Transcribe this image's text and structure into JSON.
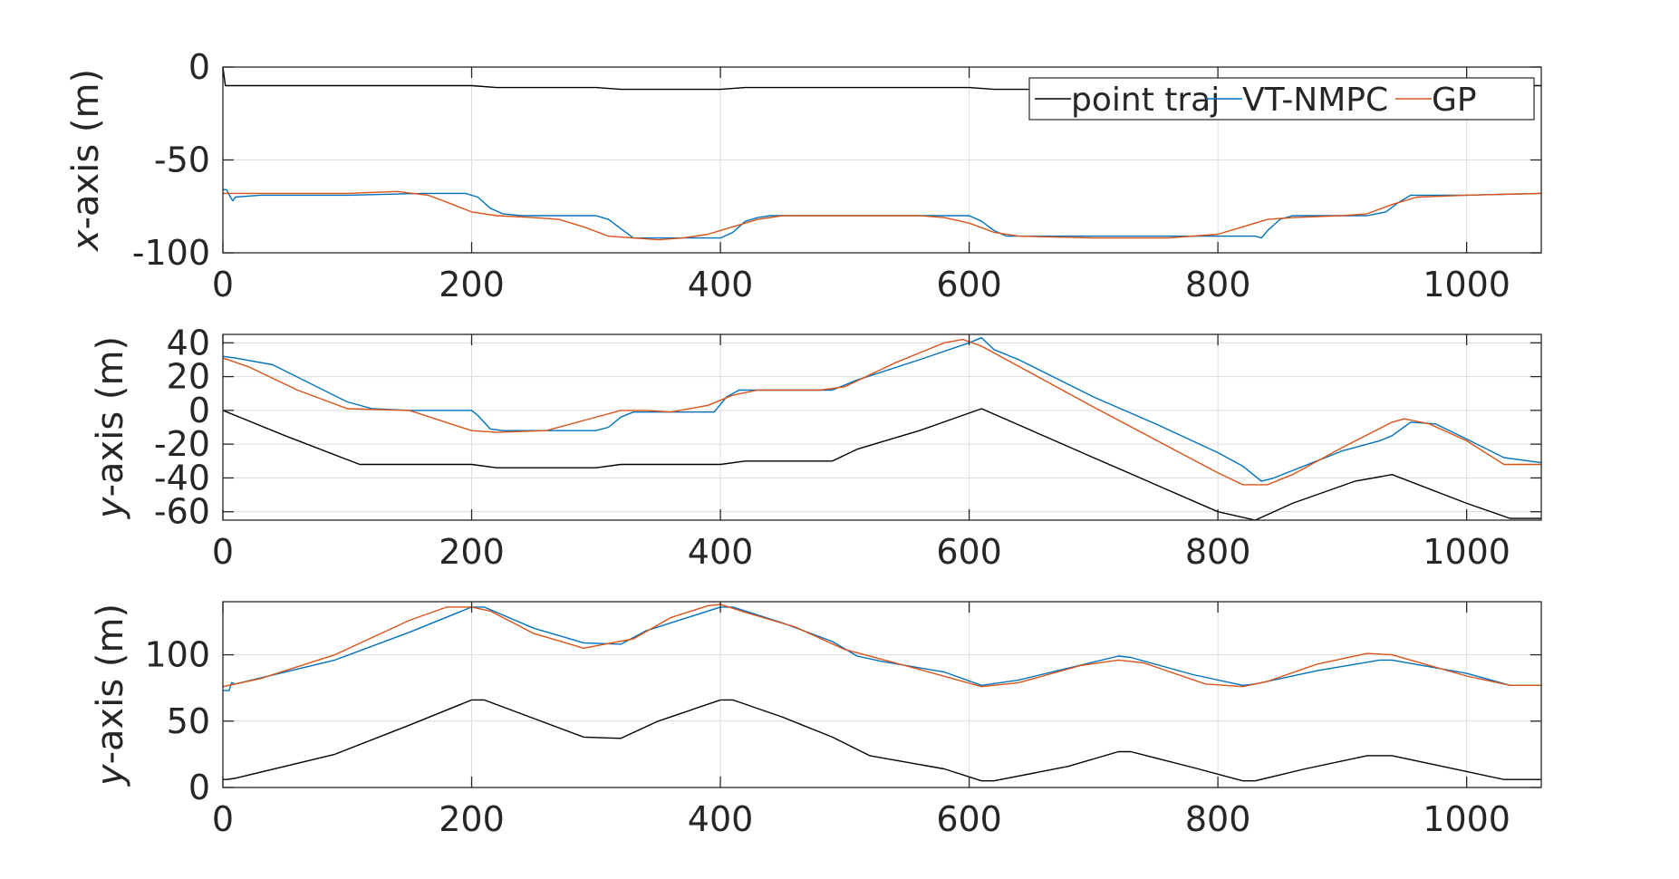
{
  "chart_data": [
    {
      "type": "line",
      "title": "",
      "ylabel_var": "x",
      "ylabel_rest": "-axis (m)",
      "xlabel": "",
      "xlim": [
        0,
        1060
      ],
      "ylim": [
        -100,
        0
      ],
      "xticks": [
        0,
        200,
        400,
        600,
        800,
        1000
      ],
      "yticks": [
        0,
        -50,
        -100
      ],
      "grid": true,
      "legend": "top-right",
      "series": [
        {
          "name": "point traj",
          "color": "#000000",
          "x": [
            0,
            2,
            4,
            100,
            200,
            220,
            300,
            320,
            400,
            420,
            500,
            600,
            620,
            700,
            800,
            830,
            900,
            1000,
            1060
          ],
          "y": [
            0,
            -10,
            -10,
            -10,
            -10,
            -11,
            -11,
            -12,
            -12,
            -11,
            -11,
            -11,
            -12,
            -12,
            -12,
            -11,
            -11,
            -10,
            -10
          ]
        },
        {
          "name": "VT-NMPC",
          "color": "#0072BD",
          "x": [
            0,
            3,
            6,
            8,
            10,
            30,
            100,
            160,
            195,
            205,
            215,
            225,
            240,
            300,
            310,
            320,
            330,
            380,
            400,
            410,
            420,
            430,
            440,
            500,
            600,
            610,
            620,
            630,
            640,
            700,
            800,
            820,
            830,
            835,
            840,
            850,
            860,
            920,
            935,
            945,
            955,
            1000,
            1060
          ],
          "y": [
            -66,
            -66,
            -70,
            -72,
            -70,
            -69,
            -69,
            -68,
            -68,
            -70,
            -76,
            -79,
            -80,
            -80,
            -82,
            -87,
            -92,
            -92,
            -92,
            -89,
            -83,
            -81,
            -80,
            -80,
            -80,
            -83,
            -88,
            -91,
            -91,
            -91,
            -91,
            -91,
            -91,
            -92,
            -88,
            -82,
            -80,
            -80,
            -78,
            -73,
            -69,
            -69,
            -68
          ]
        },
        {
          "name": "GP",
          "color": "#D95319",
          "x": [
            0,
            20,
            60,
            100,
            140,
            165,
            185,
            200,
            220,
            250,
            270,
            290,
            310,
            330,
            350,
            370,
            390,
            410,
            430,
            450,
            500,
            560,
            580,
            600,
            620,
            640,
            700,
            760,
            800,
            820,
            840,
            860,
            900,
            920,
            940,
            960,
            1000,
            1060
          ],
          "y": [
            -68,
            -68,
            -68,
            -68,
            -67,
            -69,
            -74,
            -78,
            -80,
            -81,
            -82,
            -86,
            -91,
            -92,
            -93,
            -92,
            -90,
            -86,
            -82,
            -80,
            -80,
            -80,
            -81,
            -84,
            -89,
            -91,
            -92,
            -92,
            -90,
            -86,
            -82,
            -81,
            -80,
            -79,
            -74,
            -70,
            -69,
            -68
          ]
        }
      ]
    },
    {
      "type": "line",
      "title": "",
      "ylabel_var": "y",
      "ylabel_rest": "-axis (m)",
      "xlabel": "",
      "xlim": [
        0,
        1060
      ],
      "ylim": [
        -65,
        45
      ],
      "xticks": [
        0,
        200,
        400,
        600,
        800,
        1000
      ],
      "yticks": [
        40,
        20,
        0,
        -20,
        -40,
        -60
      ],
      "grid": true,
      "legend": "none",
      "series": [
        {
          "name": "point traj",
          "color": "#000000",
          "x": [
            0,
            50,
            110,
            200,
            220,
            300,
            320,
            400,
            420,
            490,
            510,
            560,
            610,
            700,
            800,
            830,
            860,
            910,
            940,
            1000,
            1035,
            1060
          ],
          "y": [
            0,
            -15,
            -32,
            -32,
            -34,
            -34,
            -32,
            -32,
            -30,
            -30,
            -23,
            -12,
            1,
            -28,
            -60,
            -65,
            -55,
            -42,
            -38,
            -55,
            -64,
            -64
          ]
        },
        {
          "name": "VT-NMPC",
          "color": "#0072BD",
          "x": [
            0,
            10,
            40,
            100,
            120,
            150,
            200,
            205,
            215,
            225,
            300,
            310,
            320,
            330,
            350,
            395,
            405,
            415,
            490,
            510,
            560,
            600,
            610,
            620,
            640,
            700,
            750,
            800,
            820,
            835,
            845,
            900,
            930,
            940,
            955,
            975,
            1000,
            1030,
            1060
          ],
          "y": [
            32,
            31,
            27,
            5,
            1,
            0,
            0,
            -3,
            -11,
            -12,
            -12,
            -10,
            -4,
            -1,
            -1,
            -1,
            8,
            12,
            12,
            18,
            30,
            40,
            43,
            36,
            30,
            8,
            -8,
            -25,
            -33,
            -42,
            -40,
            -24,
            -18,
            -15,
            -7,
            -8,
            -17,
            -28,
            -31
          ]
        },
        {
          "name": "GP",
          "color": "#D95319",
          "x": [
            0,
            20,
            60,
            100,
            150,
            200,
            220,
            260,
            290,
            320,
            340,
            360,
            390,
            410,
            430,
            480,
            500,
            540,
            580,
            595,
            610,
            700,
            800,
            820,
            840,
            860,
            900,
            940,
            950,
            970,
            1000,
            1030,
            1060
          ],
          "y": [
            31,
            26,
            12,
            1,
            0,
            -12,
            -13,
            -12,
            -6,
            0,
            0,
            -1,
            3,
            9,
            12,
            12,
            14,
            28,
            40,
            42,
            38,
            2,
            -37,
            -44,
            -44,
            -38,
            -22,
            -7,
            -5,
            -8,
            -18,
            -32,
            -32
          ]
        }
      ]
    },
    {
      "type": "line",
      "title": "",
      "ylabel_var": "y",
      "ylabel_rest": "-axis (m)",
      "xlabel": "",
      "xlim": [
        0,
        1060
      ],
      "ylim": [
        0,
        140
      ],
      "xticks": [
        0,
        200,
        400,
        600,
        800,
        1000
      ],
      "yticks": [
        0,
        50,
        100
      ],
      "grid": true,
      "legend": "none",
      "series": [
        {
          "name": "point traj",
          "color": "#000000",
          "x": [
            0,
            3,
            10,
            90,
            150,
            200,
            210,
            250,
            290,
            320,
            350,
            400,
            410,
            450,
            490,
            520,
            580,
            610,
            620,
            680,
            720,
            730,
            780,
            820,
            830,
            870,
            920,
            940,
            980,
            1030,
            1060
          ],
          "y": [
            6,
            6,
            7,
            25,
            47,
            66,
            66,
            52,
            38,
            37,
            50,
            66,
            66,
            53,
            38,
            24,
            14,
            5,
            5,
            16,
            27,
            27,
            15,
            5,
            5,
            14,
            24,
            24,
            16,
            6,
            6
          ]
        },
        {
          "name": "VT-NMPC",
          "color": "#0072BD",
          "x": [
            0,
            5,
            7,
            10,
            90,
            150,
            200,
            210,
            250,
            290,
            320,
            340,
            400,
            410,
            450,
            490,
            510,
            530,
            580,
            610,
            640,
            680,
            720,
            730,
            780,
            820,
            830,
            880,
            930,
            940,
            1000,
            1035,
            1060
          ],
          "y": [
            73,
            73,
            79,
            78,
            96,
            117,
            136,
            136,
            120,
            109,
            108,
            118,
            136,
            136,
            124,
            110,
            99,
            95,
            87,
            77,
            81,
            90,
            99,
            98,
            85,
            77,
            78,
            88,
            96,
            96,
            86,
            77,
            77
          ]
        },
        {
          "name": "GP",
          "color": "#D95319",
          "x": [
            0,
            30,
            90,
            150,
            180,
            200,
            215,
            250,
            290,
            330,
            360,
            390,
            400,
            420,
            460,
            500,
            560,
            610,
            640,
            690,
            720,
            740,
            790,
            820,
            840,
            880,
            920,
            940,
            970,
            1000,
            1035,
            1060
          ],
          "y": [
            76,
            82,
            100,
            126,
            136,
            136,
            133,
            116,
            105,
            112,
            128,
            137,
            138,
            132,
            121,
            104,
            89,
            76,
            79,
            92,
            96,
            94,
            78,
            76,
            80,
            93,
            101,
            100,
            92,
            84,
            77,
            77
          ]
        }
      ]
    }
  ]
}
